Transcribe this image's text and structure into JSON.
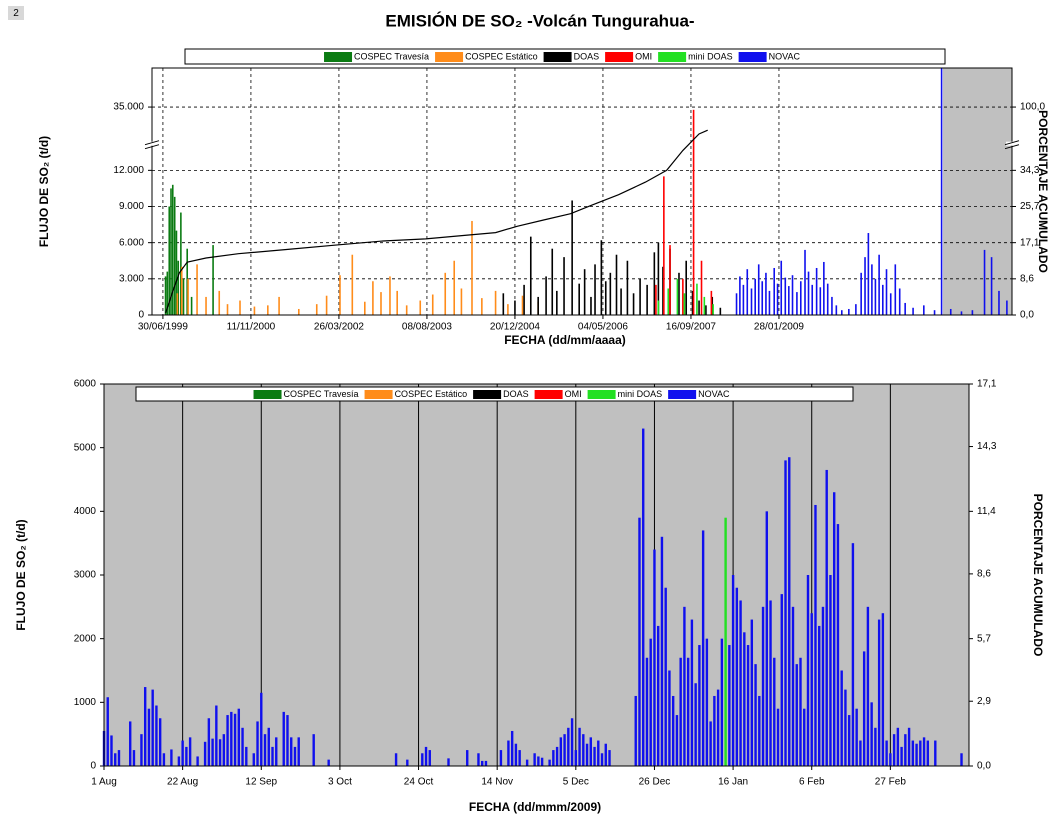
{
  "page_label": "2",
  "chart_data": [
    {
      "type": "bar",
      "title": "EMISIÓN DE SO₂  -Volcán Tungurahua-",
      "x_label": "FECHA (dd/mm/aaaa)",
      "y_label": "FLUJO DE SO₂ (t/d)",
      "y2_label": "PORCENTAJE ACUMULADO",
      "xlim": [
        "1999-04-29",
        "2012-09-13"
      ],
      "xticks": [
        {
          "value": "1999-06-30",
          "label": "30/06/1999"
        },
        {
          "value": "2000-11-11",
          "label": "11/11/2000"
        },
        {
          "value": "2002-03-26",
          "label": "26/03/2002"
        },
        {
          "value": "2003-08-08",
          "label": "08/08/2003"
        },
        {
          "value": "2004-12-20",
          "label": "20/12/2004"
        },
        {
          "value": "2006-05-04",
          "label": "04/05/2006"
        },
        {
          "value": "2007-09-16",
          "label": "16/09/2007"
        },
        {
          "value": "2009-01-28",
          "label": "28/01/2009"
        }
      ],
      "ylim": [
        0,
        49000
      ],
      "yticks": [
        0,
        {
          "value": 3000,
          "label": "3.000"
        },
        {
          "value": 6000,
          "label": "6.000"
        },
        {
          "value": 9000,
          "label": "9.000"
        },
        {
          "value": 12000,
          "label": "12.000"
        },
        {
          "value": 35000,
          "label": "35.000"
        }
      ],
      "y2lim": [
        0,
        140
      ],
      "y2ticks": [
        {
          "value": 0,
          "label": "0,0"
        },
        {
          "value": 8.6,
          "label": "8,6"
        },
        {
          "value": 17.1,
          "label": "17,1"
        },
        {
          "value": 25.7,
          "label": "25,7"
        },
        {
          "value": 34.3,
          "label": "34,3"
        },
        {
          "value": 100,
          "label": "100,0"
        }
      ],
      "broken_axis": true,
      "grid": "dashed",
      "highlight": {
        "from": "2011-08-18",
        "color": "#c0c0c0"
      },
      "series": [
        {
          "name": "COSPEC Travesía",
          "color": "#0b7b12",
          "x": [
            "1999-07-15",
            "1999-07-25",
            "1999-08-05",
            "1999-08-15",
            "1999-08-25",
            "1999-09-05",
            "1999-09-15",
            "1999-09-25",
            "1999-10-10",
            "1999-10-25",
            "1999-11-15",
            "1999-12-10",
            "2000-04-10"
          ],
          "values": [
            3200,
            3600,
            9000,
            10500,
            10800,
            9800,
            7000,
            4500,
            8500,
            3000,
            5500,
            1500,
            5800
          ]
        },
        {
          "name": "COSPEC Estático",
          "color": "#ff8c1a",
          "x": [
            "1999-09-20",
            "1999-10-15",
            "1999-11-20",
            "2000-01-10",
            "2000-03-01",
            "2000-05-15",
            "2000-07-01",
            "2000-09-10",
            "2000-12-01",
            "2001-02-15",
            "2001-04-20",
            "2001-08-10",
            "2001-11-20",
            "2002-01-15",
            "2002-04-01",
            "2002-06-10",
            "2002-08-20",
            "2002-10-05",
            "2002-11-20",
            "2003-01-10",
            "2003-02-20",
            "2003-04-15",
            "2003-07-01",
            "2003-09-10",
            "2003-11-20",
            "2004-01-10",
            "2004-02-20",
            "2004-04-20",
            "2004-06-15",
            "2004-09-01",
            "2004-11-10",
            "2005-02-01",
            "2005-05-01"
          ],
          "values": [
            1800,
            4000,
            3000,
            4200,
            1500,
            2000,
            900,
            1200,
            700,
            800,
            1500,
            500,
            900,
            1600,
            3300,
            5000,
            1100,
            2800,
            1900,
            3200,
            2000,
            800,
            1200,
            1700,
            3500,
            4500,
            2200,
            7800,
            1400,
            2000,
            900,
            1600,
            1100
          ]
        },
        {
          "name": "DOAS",
          "color": "#000000",
          "x": [
            "2004-10-15",
            "2004-12-20",
            "2005-02-10",
            "2005-03-20",
            "2005-05-01",
            "2005-06-15",
            "2005-07-20",
            "2005-08-15",
            "2005-09-25",
            "2005-11-10",
            "2005-12-20",
            "2006-01-20",
            "2006-02-25",
            "2006-03-20",
            "2006-04-25",
            "2006-05-20",
            "2006-06-15",
            "2006-07-20",
            "2006-08-15",
            "2006-09-20",
            "2006-10-25",
            "2006-12-01",
            "2007-01-10",
            "2007-02-20",
            "2007-03-15",
            "2007-04-10",
            "2007-05-20",
            "2007-07-10",
            "2007-08-20",
            "2007-09-25",
            "2007-11-01",
            "2007-12-10",
            "2008-01-15",
            "2008-03-01"
          ],
          "values": [
            1800,
            1200,
            2500,
            6500,
            1500,
            3200,
            5500,
            2000,
            4800,
            9500,
            2600,
            3800,
            1500,
            4200,
            6200,
            2800,
            3500,
            5000,
            2200,
            4500,
            1800,
            3000,
            2500,
            5200,
            6000,
            4000,
            5500,
            3500,
            4500,
            2000,
            1200,
            800,
            1500,
            600
          ]
        },
        {
          "name": "OMI",
          "color": "#ff0000",
          "x": [
            "2007-03-01",
            "2007-04-15",
            "2007-05-20",
            "2007-08-01",
            "2007-10-01",
            "2007-11-15",
            "2008-01-10"
          ],
          "values": [
            2500,
            11500,
            5800,
            3000,
            34000,
            4500,
            2000
          ]
        },
        {
          "name": "mini DOAS",
          "color": "#22e022",
          "x": [
            "2007-03-15",
            "2007-05-10",
            "2007-07-01",
            "2007-08-10",
            "2007-10-20",
            "2007-12-01",
            "2008-01-20"
          ],
          "values": [
            1200,
            2200,
            3000,
            1800,
            2600,
            1500,
            900
          ]
        },
        {
          "name": "NOVAC",
          "color": "#1010ee",
          "x": [
            "2008-06-01",
            "2008-06-20",
            "2008-07-10",
            "2008-08-01",
            "2008-08-25",
            "2008-09-15",
            "2008-10-05",
            "2008-10-25",
            "2008-11-15",
            "2008-12-05",
            "2009-01-01",
            "2009-01-20",
            "2009-02-10",
            "2009-03-05",
            "2009-03-25",
            "2009-04-15",
            "2009-05-10",
            "2009-06-01",
            "2009-06-25",
            "2009-07-15",
            "2009-08-05",
            "2009-08-30",
            "2009-09-20",
            "2009-10-10",
            "2009-11-01",
            "2009-11-25",
            "2009-12-20",
            "2010-01-20",
            "2010-03-01",
            "2010-04-10",
            "2010-05-10",
            "2010-06-01",
            "2010-06-20",
            "2010-07-10",
            "2010-07-30",
            "2010-08-20",
            "2010-09-10",
            "2010-10-01",
            "2010-10-25",
            "2010-11-20",
            "2010-12-15",
            "2011-01-15",
            "2011-03-01",
            "2011-05-01",
            "2011-07-01",
            "2011-08-10",
            "2011-10-01",
            "2011-12-01",
            "2012-02-01",
            "2012-04-10",
            "2012-05-20",
            "2012-07-01",
            "2012-08-15"
          ],
          "values": [
            1800,
            3200,
            2500,
            3800,
            2200,
            3000,
            4200,
            2800,
            3500,
            2000,
            3900,
            2600,
            4500,
            3100,
            2400,
            3300,
            1900,
            2800,
            5400,
            3600,
            2500,
            3900,
            2300,
            4400,
            2600,
            1500,
            800,
            400,
            500,
            900,
            3500,
            4800,
            6800,
            4200,
            3000,
            5000,
            2500,
            3800,
            1800,
            4200,
            2200,
            1000,
            600,
            800,
            400,
            49000,
            500,
            300,
            400,
            5400,
            4800,
            2000,
            1200
          ]
        },
        {
          "type": "line",
          "axis": "y2",
          "color": "#000000",
          "x": [
            "1999-07-15",
            "1999-08-20",
            "1999-10-01",
            "1999-11-15",
            "2000-03-01",
            "2000-09-01",
            "2001-06-01",
            "2002-03-01",
            "2002-12-01",
            "2003-08-01",
            "2004-03-01",
            "2004-09-01",
            "2005-01-01",
            "2005-06-01",
            "2005-11-01",
            "2006-03-01",
            "2006-08-01",
            "2007-01-01",
            "2007-05-01",
            "2007-08-01",
            "2007-11-01",
            "2007-12-20"
          ],
          "values": [
            0.5,
            5,
            10,
            12.5,
            13.5,
            14.5,
            15.5,
            16.5,
            17.5,
            18,
            18.8,
            19.5,
            21,
            22.5,
            24,
            26,
            28.5,
            31.5,
            34.3,
            55,
            72,
            76
          ]
        }
      ]
    },
    {
      "type": "bar",
      "x_label": "FECHA (dd/mmm/2009)",
      "y_label": "FLUJO DE SO₂ (t/d)",
      "y2_label": "PORCENTAJE ACUMULADO",
      "xlim": [
        0,
        231
      ],
      "xticks": [
        {
          "value": 0,
          "label": "1 Aug"
        },
        {
          "value": 21,
          "label": "22 Aug"
        },
        {
          "value": 42,
          "label": "12 Sep"
        },
        {
          "value": 63,
          "label": "3 Oct"
        },
        {
          "value": 84,
          "label": "24 Oct"
        },
        {
          "value": 105,
          "label": "14 Nov"
        },
        {
          "value": 126,
          "label": "5 Dec"
        },
        {
          "value": 147,
          "label": "26 Dec"
        },
        {
          "value": 168,
          "label": "16 Jan"
        },
        {
          "value": 189,
          "label": "6 Feb"
        },
        {
          "value": 210,
          "label": "27 Feb"
        }
      ],
      "ylim": [
        0,
        6000
      ],
      "yticks": [
        0,
        1000,
        2000,
        3000,
        4000,
        5000,
        6000
      ],
      "y2lim": [
        0,
        17.1
      ],
      "y2ticks": [
        {
          "value": 0,
          "label": "0,0"
        },
        {
          "value": 2.9,
          "label": "2,9"
        },
        {
          "value": 5.7,
          "label": "5,7"
        },
        {
          "value": 8.6,
          "label": "8,6"
        },
        {
          "value": 11.4,
          "label": "11,4"
        },
        {
          "value": 14.3,
          "label": "14,3"
        },
        {
          "value": 17.1,
          "label": "17,1"
        }
      ],
      "grid": "x",
      "background": "#c0c0c0",
      "series": [
        {
          "name": "COSPEC Travesía",
          "color": "#0b7b12",
          "x": [],
          "values": []
        },
        {
          "name": "COSPEC Estático",
          "color": "#ff8c1a",
          "x": [],
          "values": []
        },
        {
          "name": "DOAS",
          "color": "#000000",
          "x": [],
          "values": []
        },
        {
          "name": "OMI",
          "color": "#ff0000",
          "x": [],
          "values": []
        },
        {
          "name": "mini DOAS",
          "color": "#22e022",
          "x": [
            166
          ],
          "values": [
            3900
          ]
        },
        {
          "name": "NOVAC",
          "color": "#1010ee",
          "x": [
            0,
            1,
            2,
            3,
            4,
            7,
            8,
            10,
            11,
            12,
            13,
            14,
            15,
            16,
            18,
            20,
            21,
            22,
            23,
            25,
            27,
            28,
            29,
            30,
            31,
            32,
            33,
            34,
            35,
            36,
            37,
            38,
            40,
            41,
            42,
            43,
            44,
            45,
            46,
            48,
            49,
            50,
            51,
            52,
            56,
            60,
            78,
            81,
            85,
            86,
            87,
            92,
            97,
            100,
            101,
            102,
            106,
            108,
            109,
            110,
            111,
            113,
            115,
            116,
            117,
            119,
            120,
            121,
            122,
            123,
            124,
            125,
            126,
            127,
            128,
            129,
            130,
            131,
            132,
            133,
            134,
            135,
            142,
            143,
            144,
            145,
            146,
            147,
            148,
            149,
            150,
            151,
            152,
            153,
            154,
            155,
            156,
            157,
            158,
            159,
            160,
            161,
            162,
            163,
            164,
            165,
            167,
            168,
            169,
            170,
            171,
            172,
            173,
            174,
            175,
            176,
            177,
            178,
            179,
            180,
            181,
            182,
            183,
            184,
            185,
            186,
            187,
            188,
            189,
            190,
            191,
            192,
            193,
            194,
            195,
            196,
            197,
            198,
            199,
            200,
            201,
            202,
            203,
            204,
            205,
            206,
            207,
            208,
            209,
            210,
            211,
            212,
            213,
            214,
            215,
            216,
            217,
            218,
            219,
            220,
            222,
            229
          ],
          "values": [
            550,
            1080,
            480,
            200,
            250,
            700,
            250,
            500,
            1240,
            900,
            1200,
            950,
            750,
            200,
            260,
            150,
            400,
            300,
            450,
            150,
            380,
            750,
            430,
            950,
            420,
            500,
            800,
            850,
            820,
            900,
            600,
            300,
            200,
            700,
            1150,
            500,
            600,
            300,
            450,
            850,
            800,
            450,
            300,
            450,
            500,
            100,
            200,
            100,
            200,
            300,
            250,
            120,
            250,
            200,
            80,
            80,
            250,
            400,
            550,
            350,
            250,
            100,
            200,
            150,
            130,
            100,
            250,
            300,
            450,
            500,
            600,
            750,
            250,
            600,
            500,
            350,
            450,
            300,
            400,
            200,
            350,
            250,
            1100,
            3900,
            5300,
            1700,
            2000,
            3400,
            2200,
            3600,
            2800,
            1500,
            1100,
            800,
            1700,
            2500,
            1700,
            2300,
            1300,
            1900,
            3700,
            2000,
            700,
            1100,
            1200,
            2000,
            1900,
            3000,
            2800,
            2600,
            2100,
            1900,
            2300,
            1600,
            1100,
            2500,
            4000,
            2600,
            1700,
            900,
            2700,
            4800,
            4850,
            2500,
            1600,
            1700,
            900,
            3000,
            2400,
            4100,
            2200,
            2500,
            4650,
            3000,
            4300,
            3800,
            1500,
            1200,
            800,
            3500,
            900,
            400,
            1800,
            2500,
            1000,
            600,
            2300,
            2400,
            400,
            200,
            500,
            600,
            300,
            500,
            600,
            400,
            350,
            400,
            450,
            400,
            400,
            200
          ]
        }
      ]
    }
  ]
}
